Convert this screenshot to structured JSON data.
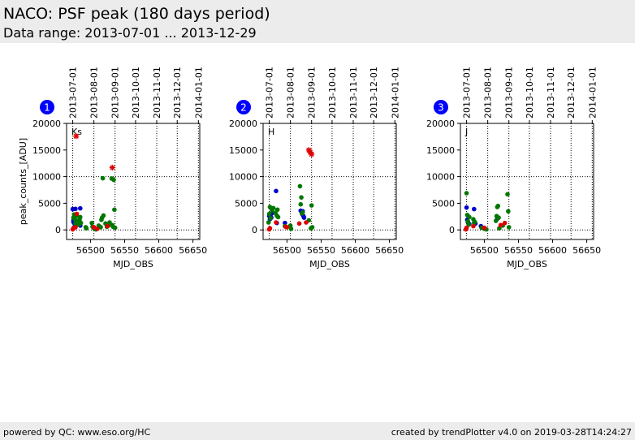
{
  "header": {
    "title": "NACO: PSF peak (180 days period)",
    "subtitle": "Data range: 2013-07-01 ... 2013-12-29"
  },
  "footer": {
    "left": "powered by QC: www.eso.org/HC",
    "right": "created by trendPlotter v4.0 on 2019-03-28T14:24:27"
  },
  "colors": {
    "badge": "#0000ff",
    "series_blue": "#0000cc",
    "series_green": "#007700",
    "series_red": "#dd0000"
  },
  "chart_data": [
    {
      "type": "scatter",
      "panel_number": "1",
      "label": "Ks",
      "xlabel": "MJD_OBS",
      "ylabel": "peak_counts_[ADU]",
      "xlim": [
        56465,
        56660
      ],
      "ylim": [
        -1800,
        20000
      ],
      "x_ticks": [
        56500,
        56550,
        56600,
        56650
      ],
      "y_ticks": [
        0,
        5000,
        10000,
        15000,
        20000
      ],
      "top_ticks": {
        "values": [
          56474,
          56505,
          56536,
          56566,
          56597,
          56627,
          56658
        ],
        "labels": [
          "2013-07-01",
          "2013-08-01",
          "2013-09-01",
          "2013-10-01",
          "2013-11-01",
          "2013-12-01",
          "2014-01-01"
        ]
      },
      "hlines": [
        0,
        10000
      ],
      "vlines": [
        56474,
        56505,
        56536,
        56566,
        56597,
        56627,
        56658
      ],
      "series": [
        {
          "color": "blue",
          "marker": "dot",
          "points": [
            [
              56474,
              3900
            ],
            [
              56475,
              1800
            ],
            [
              56476,
              1300
            ],
            [
              56477,
              1100
            ],
            [
              56478,
              800
            ],
            [
              56478,
              3950
            ],
            [
              56485,
              4050
            ],
            [
              56485,
              800
            ],
            [
              56482,
              1000
            ],
            [
              56475,
              1500
            ]
          ]
        },
        {
          "color": "green",
          "marker": "dot",
          "points": [
            [
              56475,
              2300
            ],
            [
              56476,
              2900
            ],
            [
              56477,
              2000
            ],
            [
              56478,
              1200
            ],
            [
              56479,
              1700
            ],
            [
              56480,
              2600
            ],
            [
              56481,
              1500
            ],
            [
              56483,
              1000
            ],
            [
              56484,
              1900
            ],
            [
              56485,
              2400
            ],
            [
              56486,
              1300
            ],
            [
              56493,
              500
            ],
            [
              56494,
              300
            ],
            [
              56502,
              1300
            ],
            [
              56503,
              600
            ],
            [
              56505,
              300
            ],
            [
              56508,
              100
            ],
            [
              56512,
              800
            ],
            [
              56515,
              500
            ],
            [
              56516,
              1900
            ],
            [
              56517,
              2300
            ],
            [
              56518,
              9700
            ],
            [
              56519,
              2700
            ],
            [
              56522,
              1200
            ],
            [
              56524,
              600
            ],
            [
              56526,
              800
            ],
            [
              56528,
              1400
            ],
            [
              56531,
              9650
            ],
            [
              56532,
              900
            ],
            [
              56533,
              600
            ],
            [
              56534,
              9400
            ],
            [
              56535,
              3800
            ],
            [
              56536,
              400
            ]
          ]
        },
        {
          "color": "red",
          "marker": "dot",
          "points": [
            [
              56474,
              100
            ],
            [
              56475,
              300
            ],
            [
              56478,
              500
            ],
            [
              56480,
              3000
            ],
            [
              56505,
              500
            ],
            [
              56510,
              200
            ],
            [
              56525,
              700
            ]
          ]
        },
        {
          "color": "red",
          "marker": "star",
          "points": [
            [
              56479,
              17600
            ],
            [
              56532,
              11700
            ]
          ]
        }
      ]
    },
    {
      "type": "scatter",
      "panel_number": "2",
      "label": "H",
      "xlabel": "MJD_OBS",
      "ylabel": "",
      "xlim": [
        56465,
        56660
      ],
      "ylim": [
        -1800,
        20000
      ],
      "x_ticks": [
        56500,
        56550,
        56600,
        56650
      ],
      "y_ticks": [
        0,
        5000,
        10000,
        15000,
        20000
      ],
      "top_ticks": {
        "values": [
          56474,
          56505,
          56536,
          56566,
          56597,
          56627,
          56658
        ],
        "labels": [
          "2013-07-01",
          "2013-08-01",
          "2013-09-01",
          "2013-10-01",
          "2013-11-01",
          "2013-12-01",
          "2014-01-01"
        ]
      },
      "hlines": [
        0,
        10000
      ],
      "vlines": [
        56474,
        56505,
        56536,
        56566,
        56597,
        56627,
        56658
      ],
      "series": [
        {
          "color": "blue",
          "marker": "dot",
          "points": [
            [
              56474,
              2600
            ],
            [
              56475,
              2000
            ],
            [
              56476,
              2900
            ],
            [
              56477,
              2300
            ],
            [
              56478,
              3100
            ],
            [
              56484,
              7300
            ],
            [
              56485,
              1300
            ],
            [
              56497,
              1300
            ],
            [
              56520,
              3600
            ],
            [
              56522,
              3000
            ],
            [
              56523,
              3500
            ],
            [
              56524,
              2600
            ],
            [
              56525,
              2300
            ]
          ]
        },
        {
          "color": "green",
          "marker": "dot",
          "points": [
            [
              56473,
              1400
            ],
            [
              56474,
              3000
            ],
            [
              56475,
              4300
            ],
            [
              56476,
              2200
            ],
            [
              56478,
              3700
            ],
            [
              56480,
              4100
            ],
            [
              56483,
              3200
            ],
            [
              56485,
              2700
            ],
            [
              56486,
              3800
            ],
            [
              56487,
              2400
            ],
            [
              56497,
              700
            ],
            [
              56505,
              800
            ],
            [
              56506,
              200
            ],
            [
              56519,
              8200
            ],
            [
              56520,
              4800
            ],
            [
              56521,
              6100
            ],
            [
              56522,
              3100
            ],
            [
              56523,
              3300
            ],
            [
              56532,
              1800
            ],
            [
              56535,
              300
            ],
            [
              56536,
              4600
            ],
            [
              56537,
              500
            ]
          ]
        },
        {
          "color": "red",
          "marker": "dot",
          "points": [
            [
              56474,
              100
            ],
            [
              56475,
              300
            ],
            [
              56484,
              1400
            ],
            [
              56498,
              600
            ],
            [
              56500,
              500
            ],
            [
              56518,
              1200
            ],
            [
              56528,
              1400
            ]
          ]
        },
        {
          "color": "red",
          "marker": "star",
          "points": [
            [
              56532,
              15000
            ],
            [
              56534,
              14600
            ],
            [
              56536,
              14200
            ]
          ]
        }
      ]
    },
    {
      "type": "scatter",
      "panel_number": "3",
      "label": "J",
      "xlabel": "MJD_OBS",
      "ylabel": "",
      "xlim": [
        56465,
        56660
      ],
      "ylim": [
        -1800,
        20000
      ],
      "x_ticks": [
        56500,
        56550,
        56600,
        56650
      ],
      "y_ticks": [
        0,
        5000,
        10000,
        15000,
        20000
      ],
      "top_ticks": {
        "values": [
          56474,
          56505,
          56536,
          56566,
          56597,
          56627,
          56658
        ],
        "labels": [
          "2013-07-01",
          "2013-08-01",
          "2013-09-01",
          "2013-10-01",
          "2013-11-01",
          "2013-12-01",
          "2014-01-01"
        ]
      },
      "hlines": [
        0,
        10000
      ],
      "vlines": [
        56474,
        56505,
        56536,
        56566,
        56597,
        56627,
        56658
      ],
      "series": [
        {
          "color": "blue",
          "marker": "dot",
          "points": [
            [
              56474,
              4200
            ],
            [
              56475,
              1900
            ],
            [
              56476,
              1400
            ],
            [
              56477,
              2500
            ],
            [
              56478,
              1100
            ],
            [
              56485,
              3900
            ],
            [
              56487,
              1200
            ],
            [
              56495,
              700
            ],
            [
              56519,
              2100
            ]
          ]
        },
        {
          "color": "green",
          "marker": "dot",
          "points": [
            [
              56474,
              6900
            ],
            [
              56475,
              2800
            ],
            [
              56476,
              1600
            ],
            [
              56477,
              1000
            ],
            [
              56478,
              2400
            ],
            [
              56484,
              2000
            ],
            [
              56485,
              1300
            ],
            [
              56486,
              1500
            ],
            [
              56496,
              400
            ],
            [
              56500,
              200
            ],
            [
              56503,
              100
            ],
            [
              56517,
              1700
            ],
            [
              56518,
              2600
            ],
            [
              56519,
              4300
            ],
            [
              56520,
              4500
            ],
            [
              56521,
              2300
            ],
            [
              56522,
              300
            ],
            [
              56527,
              800
            ],
            [
              56534,
              6700
            ],
            [
              56535,
              3500
            ],
            [
              56536,
              500
            ]
          ]
        },
        {
          "color": "red",
          "marker": "dot",
          "points": [
            [
              56473,
              100
            ],
            [
              56474,
              400
            ],
            [
              56484,
              700
            ],
            [
              56500,
              400
            ],
            [
              56524,
              900
            ],
            [
              56530,
              1300
            ]
          ]
        }
      ]
    }
  ]
}
